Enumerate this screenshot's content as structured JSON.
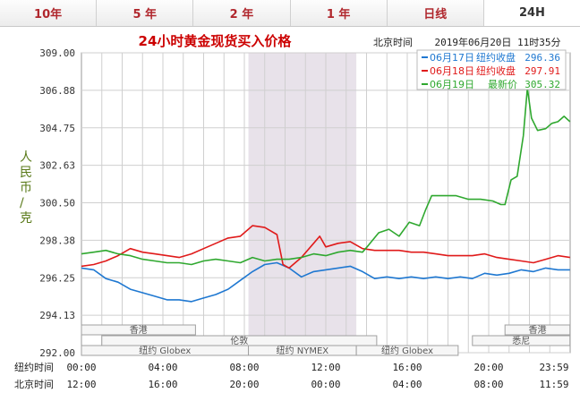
{
  "tabs": [
    {
      "label": "10年",
      "active": false
    },
    {
      "label": "5 年",
      "active": false
    },
    {
      "label": "2 年",
      "active": false
    },
    {
      "label": "1 年",
      "active": false
    },
    {
      "label": "日线",
      "active": false
    },
    {
      "label": "24H",
      "active": true
    }
  ],
  "chart_data": {
    "type": "line",
    "title": "24小时黄金现货买入价格",
    "timestamp_label": "北京时间",
    "timestamp": "2019年06月20日 11时35分",
    "ylabel": "人民币/克",
    "ylim": [
      292.0,
      309.0
    ],
    "yticks": [
      "309.00",
      "306.88",
      "304.75",
      "302.63",
      "300.50",
      "298.38",
      "296.25",
      "294.13",
      "292.00"
    ],
    "xlim": [
      0,
      24
    ],
    "row1_label": "纽约时间",
    "row1_ticks": [
      "00:00",
      "04:00",
      "08:00",
      "12:00",
      "16:00",
      "20:00",
      "23:59"
    ],
    "row2_label": "北京时间",
    "row2_ticks": [
      "12:00",
      "16:00",
      "20:00",
      "00:00",
      "04:00",
      "08:00",
      "11:59"
    ],
    "shaded_session": [
      8.2,
      13.5
    ],
    "grid": true,
    "legend_position": "top-right",
    "markets": {
      "hongkong": {
        "label": "香港",
        "ranges": [
          [
            0,
            5.6
          ],
          [
            20.8,
            23.99
          ]
        ]
      },
      "london": {
        "label": "伦敦",
        "range": [
          1,
          14.5
        ]
      },
      "globex1": {
        "label": "纽约 Globex",
        "range": [
          0,
          8.2
        ]
      },
      "nymex": {
        "label": "纽约 NYMEX",
        "range": [
          8.2,
          13.5
        ]
      },
      "globex2": {
        "label": "纽约 Globex",
        "range": [
          13.5,
          18.5
        ]
      },
      "sydney": {
        "label": "悉尼",
        "range": [
          19.2,
          23.99
        ]
      }
    },
    "series": [
      {
        "name": "06月17日 纽约收盘 296.36",
        "date": "06月17日",
        "note": "纽约收盘",
        "value": "296.36",
        "color": "#1f78d1",
        "points": [
          [
            0,
            296.8
          ],
          [
            0.6,
            296.7
          ],
          [
            1.2,
            296.2
          ],
          [
            1.8,
            296.0
          ],
          [
            2.4,
            295.6
          ],
          [
            3,
            295.4
          ],
          [
            3.6,
            295.2
          ],
          [
            4.2,
            295.0
          ],
          [
            4.8,
            295.0
          ],
          [
            5.4,
            294.9
          ],
          [
            6,
            295.1
          ],
          [
            6.6,
            295.3
          ],
          [
            7.2,
            295.6
          ],
          [
            7.8,
            296.1
          ],
          [
            8.4,
            296.6
          ],
          [
            9,
            297.0
          ],
          [
            9.6,
            297.1
          ],
          [
            10.2,
            296.8
          ],
          [
            10.8,
            296.3
          ],
          [
            11.4,
            296.6
          ],
          [
            12,
            296.7
          ],
          [
            12.6,
            296.8
          ],
          [
            13.2,
            296.9
          ],
          [
            13.8,
            296.6
          ],
          [
            14.4,
            296.2
          ],
          [
            15,
            296.3
          ],
          [
            15.6,
            296.2
          ],
          [
            16.2,
            296.3
          ],
          [
            16.8,
            296.2
          ],
          [
            17.4,
            296.3
          ],
          [
            18,
            296.2
          ],
          [
            18.6,
            296.3
          ],
          [
            19.2,
            296.2
          ],
          [
            19.8,
            296.5
          ],
          [
            20.4,
            296.4
          ],
          [
            21,
            296.5
          ],
          [
            21.6,
            296.7
          ],
          [
            22.2,
            296.6
          ],
          [
            22.8,
            296.8
          ],
          [
            23.4,
            296.7
          ],
          [
            23.99,
            296.7
          ]
        ]
      },
      {
        "name": "06月18日 纽约收盘 297.91",
        "date": "06月18日",
        "note": "纽约收盘",
        "value": "297.91",
        "color": "#e01a1a",
        "points": [
          [
            0,
            296.9
          ],
          [
            0.6,
            297.0
          ],
          [
            1.2,
            297.2
          ],
          [
            1.8,
            297.5
          ],
          [
            2.4,
            297.9
          ],
          [
            3,
            297.7
          ],
          [
            3.6,
            297.6
          ],
          [
            4.2,
            297.5
          ],
          [
            4.8,
            297.4
          ],
          [
            5.4,
            297.6
          ],
          [
            6,
            297.9
          ],
          [
            6.6,
            298.2
          ],
          [
            7.2,
            298.5
          ],
          [
            7.8,
            298.6
          ],
          [
            8.4,
            299.2
          ],
          [
            9,
            299.1
          ],
          [
            9.6,
            298.7
          ],
          [
            9.9,
            297.0
          ],
          [
            10.2,
            296.8
          ],
          [
            10.8,
            297.4
          ],
          [
            11.4,
            298.2
          ],
          [
            11.7,
            298.6
          ],
          [
            12,
            298.0
          ],
          [
            12.6,
            298.2
          ],
          [
            13.2,
            298.3
          ],
          [
            13.8,
            297.9
          ],
          [
            14.4,
            297.8
          ],
          [
            15,
            297.8
          ],
          [
            15.6,
            297.8
          ],
          [
            16.2,
            297.7
          ],
          [
            16.8,
            297.7
          ],
          [
            17.4,
            297.6
          ],
          [
            18,
            297.5
          ],
          [
            18.6,
            297.5
          ],
          [
            19.2,
            297.5
          ],
          [
            19.8,
            297.6
          ],
          [
            20.4,
            297.4
          ],
          [
            21,
            297.3
          ],
          [
            21.6,
            297.2
          ],
          [
            22.2,
            297.1
          ],
          [
            22.8,
            297.3
          ],
          [
            23.4,
            297.5
          ],
          [
            23.99,
            297.4
          ]
        ]
      },
      {
        "name": "06月19日 最新价 305.32",
        "date": "06月19日",
        "note": "最新价",
        "value": "305.32",
        "color": "#2fa82f",
        "points": [
          [
            0,
            297.6
          ],
          [
            0.6,
            297.7
          ],
          [
            1.2,
            297.8
          ],
          [
            1.8,
            297.6
          ],
          [
            2.4,
            297.5
          ],
          [
            3,
            297.3
          ],
          [
            3.6,
            297.2
          ],
          [
            4.2,
            297.1
          ],
          [
            4.8,
            297.1
          ],
          [
            5.4,
            297.0
          ],
          [
            6,
            297.2
          ],
          [
            6.6,
            297.3
          ],
          [
            7.2,
            297.2
          ],
          [
            7.8,
            297.1
          ],
          [
            8.4,
            297.4
          ],
          [
            9,
            297.2
          ],
          [
            9.6,
            297.3
          ],
          [
            10.2,
            297.3
          ],
          [
            10.8,
            297.4
          ],
          [
            11.4,
            297.6
          ],
          [
            12,
            297.5
          ],
          [
            12.6,
            297.7
          ],
          [
            13.2,
            297.8
          ],
          [
            13.8,
            297.7
          ],
          [
            14.1,
            298.1
          ],
          [
            14.6,
            298.8
          ],
          [
            15.1,
            299.0
          ],
          [
            15.6,
            298.6
          ],
          [
            16.1,
            299.4
          ],
          [
            16.6,
            299.2
          ],
          [
            16.9,
            300.1
          ],
          [
            17.2,
            300.9
          ],
          [
            17.8,
            300.9
          ],
          [
            18.4,
            300.9
          ],
          [
            19,
            300.7
          ],
          [
            19.6,
            300.7
          ],
          [
            20.2,
            300.6
          ],
          [
            20.6,
            300.4
          ],
          [
            20.8,
            300.4
          ],
          [
            21.1,
            301.8
          ],
          [
            21.4,
            302.0
          ],
          [
            21.7,
            304.3
          ],
          [
            21.9,
            307.0
          ],
          [
            22.1,
            305.3
          ],
          [
            22.4,
            304.6
          ],
          [
            22.8,
            304.7
          ],
          [
            23.1,
            305.0
          ],
          [
            23.4,
            305.1
          ],
          [
            23.7,
            305.4
          ],
          [
            23.99,
            305.1
          ]
        ]
      }
    ]
  }
}
